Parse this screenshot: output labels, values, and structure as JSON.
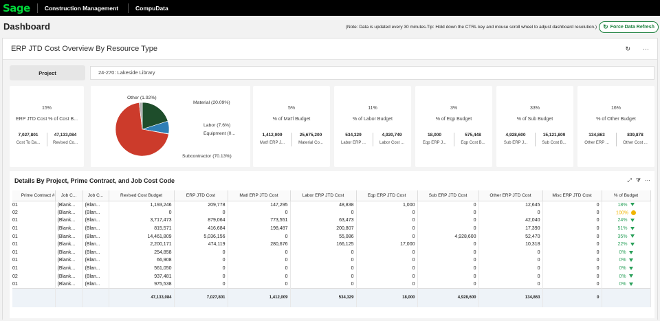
{
  "topbar": {
    "logo": "Sage",
    "links": [
      "Construction Management",
      "CompuData"
    ]
  },
  "dashboard": {
    "title": "Dashboard",
    "note": "(Note: Data is updated every 30 minutes.Tip: Hold down the CTRL key and mouse scroll wheel to adjust dashboard resolution.)",
    "refresh_label": "Force Data Refresh"
  },
  "panel": {
    "title": "ERP JTD Cost Overview By Resource Type",
    "project_label": "Project",
    "project_value": "24-270: Lakeside Library"
  },
  "cards": [
    {
      "pct": "15%",
      "label": "ERP JTD Cost % of Cost B...",
      "v1": "7,027,801",
      "k1": "Cost To Da...",
      "v2": "47,133,084",
      "k2": "Revised Co..."
    },
    {
      "pct": "5%",
      "label": "% of Mat'l Budget",
      "v1": "1,412,009",
      "k1": "Mat'l ERP J...",
      "v2": "25,675,200",
      "k2": "Material Co..."
    },
    {
      "pct": "11%",
      "label": "% of Labor Budget",
      "v1": "534,329",
      "k1": "Labor ERP ...",
      "v2": "4,920,749",
      "k2": "Labor Cost ..."
    },
    {
      "pct": "3%",
      "label": "% of Eqp Budget",
      "v1": "18,000",
      "k1": "Eqp ERP J...",
      "v2": "575,448",
      "k2": "Eqp Cost B..."
    },
    {
      "pct": "33%",
      "label": "% of Sub Budget",
      "v1": "4,928,600",
      "k1": "Sub ERP J...",
      "v2": "15,121,809",
      "k2": "Sub Cost B..."
    },
    {
      "pct": "16%",
      "label": "% of Other Budget",
      "v1": "134,863",
      "k1": "Other ERP ...",
      "v2": "839,878",
      "k2": "Other Cost ..."
    }
  ],
  "chart_data": {
    "type": "pie",
    "slices": [
      {
        "name": "Material",
        "label": "Material (20.09%)",
        "value": 20.09,
        "color": "#1e4d2b"
      },
      {
        "name": "Labor",
        "label": "Labor (7.6%)",
        "value": 7.6,
        "color": "#2f7fb5"
      },
      {
        "name": "Equipment",
        "label": "Equipment (0...",
        "value": 0.26,
        "color": "#7fb3d9"
      },
      {
        "name": "Subcontractor",
        "label": "Subcontractor (70.13%)",
        "value": 70.13,
        "color": "#cc3b2b"
      },
      {
        "name": "Other",
        "label": "Other (1.92%)",
        "value": 1.92,
        "color": "#b0b0b0"
      }
    ]
  },
  "details": {
    "title": "Details By Project, Prime Contract, and Job Cost Code",
    "columns": [
      "Prime Contract #",
      "Job C...",
      "Job C...",
      "Revised Cost Budget",
      "ERP JTD Cost",
      "Matl ERP JTD Cost",
      "Labor ERP JTD Cost",
      "Eqp ERP JTD Cost",
      "Sub ERP JTD Cost",
      "Other ERP JTD Cost",
      "Misc ERP JTD Cost",
      "% of Budget"
    ],
    "rows": [
      [
        "01",
        "(Blank...",
        "(Blan...",
        "1,193,246",
        "209,778",
        "147,295",
        "48,838",
        "1,000",
        "0",
        "12,645",
        "0",
        "18%"
      ],
      [
        "02",
        "(Blank...",
        "(Blan...",
        "0",
        "0",
        "0",
        "0",
        "0",
        "0",
        "0",
        "0",
        "100%"
      ],
      [
        "01",
        "(Blank...",
        "(Blan...",
        "3,717,473",
        "879,064",
        "773,551",
        "63,473",
        "0",
        "0",
        "42,040",
        "0",
        "24%"
      ],
      [
        "01",
        "(Blank...",
        "(Blan...",
        "815,571",
        "416,684",
        "198,487",
        "200,807",
        "0",
        "0",
        "17,390",
        "0",
        "51%"
      ],
      [
        "01",
        "(Blank...",
        "(Blan...",
        "14,461,809",
        "5,036,156",
        "0",
        "55,086",
        "0",
        "4,928,600",
        "52,470",
        "0",
        "35%"
      ],
      [
        "01",
        "(Blank...",
        "(Blan...",
        "2,200,171",
        "474,119",
        "280,676",
        "166,125",
        "17,000",
        "0",
        "10,318",
        "0",
        "22%"
      ],
      [
        "01",
        "(Blank...",
        "(Blan...",
        "254,858",
        "0",
        "0",
        "0",
        "0",
        "0",
        "0",
        "0",
        "0%"
      ],
      [
        "01",
        "(Blank...",
        "(Blan...",
        "66,908",
        "0",
        "0",
        "0",
        "0",
        "0",
        "0",
        "0",
        "0%"
      ],
      [
        "01",
        "(Blank...",
        "(Blan...",
        "561,050",
        "0",
        "0",
        "0",
        "0",
        "0",
        "0",
        "0",
        "0%"
      ],
      [
        "02",
        "(Blank...",
        "(Blan...",
        "937,481",
        "0",
        "0",
        "0",
        "0",
        "0",
        "0",
        "0",
        "0%"
      ],
      [
        "01",
        "(Blank...",
        "(Blan...",
        "975,538",
        "0",
        "0",
        "0",
        "0",
        "0",
        "0",
        "0",
        "0%"
      ]
    ],
    "totals": [
      "",
      "",
      "",
      "47,133,084",
      "7,027,801",
      "1,412,009",
      "534,329",
      "18,000",
      "4,928,600",
      "134,863",
      "0",
      ""
    ]
  }
}
